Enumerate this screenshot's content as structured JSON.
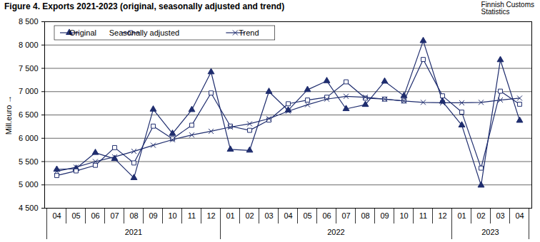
{
  "chart_data": {
    "type": "line",
    "title": "Figure 4. Exports 2021-2023 (original, seasonally adjusted and trend)",
    "source": [
      "Finnish Customs",
      "Statistics"
    ],
    "y_label": "Mill.euro",
    "categories": [
      "04",
      "05",
      "06",
      "07",
      "08",
      "09",
      "10",
      "11",
      "12",
      "01",
      "02",
      "03",
      "04",
      "05",
      "06",
      "07",
      "08",
      "09",
      "10",
      "11",
      "12",
      "01",
      "02",
      "03",
      "04"
    ],
    "category_groups": [
      {
        "label": "2021",
        "count": 9
      },
      {
        "label": "2022",
        "count": 12
      },
      {
        "label": "2023",
        "count": 4
      }
    ],
    "ylim": [
      4500,
      8500
    ],
    "yticks": [
      {
        "value": 4500,
        "label": "4 500"
      },
      {
        "value": 5000,
        "label": "5 000"
      },
      {
        "value": 5500,
        "label": "5 500"
      },
      {
        "value": 6000,
        "label": "6 000"
      },
      {
        "value": 6500,
        "label": "6 500"
      },
      {
        "value": 7000,
        "label": "7 000"
      },
      {
        "value": 7500,
        "label": "7 500"
      },
      {
        "value": 8000,
        "label": "8 000"
      },
      {
        "value": 8500,
        "label": "8 500"
      }
    ],
    "grid": true,
    "legend": "top-left",
    "series": [
      {
        "name": "Original",
        "color": "#1f2d6e",
        "marker": "triangle",
        "values": [
          5330,
          5350,
          5690,
          5560,
          5150,
          6620,
          6100,
          6610,
          7420,
          5760,
          5740,
          7000,
          6600,
          7040,
          7230,
          6630,
          6720,
          7220,
          6910,
          8090,
          6790,
          6280,
          4990,
          7680,
          6380
        ]
      },
      {
        "name": "Seasonally adjusted",
        "color": "#1f2d6e",
        "marker": "open_square",
        "values": [
          5200,
          5300,
          5420,
          5800,
          5470,
          6260,
          5990,
          6280,
          6970,
          6260,
          6170,
          6390,
          6740,
          6820,
          6880,
          7210,
          6860,
          6840,
          6800,
          7690,
          6910,
          6560,
          5360,
          7010,
          6730
        ]
      },
      {
        "name": "Trend",
        "color": "#1f2d6e",
        "marker": "x",
        "values": [
          5290,
          5380,
          5500,
          5600,
          5720,
          5850,
          5970,
          6070,
          6150,
          6240,
          6310,
          6420,
          6580,
          6720,
          6840,
          6900,
          6880,
          6840,
          6800,
          6770,
          6760,
          6760,
          6770,
          6820,
          6860
        ]
      }
    ]
  }
}
